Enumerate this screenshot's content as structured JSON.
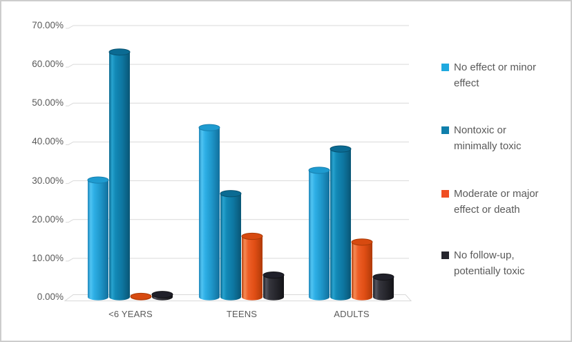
{
  "window": {
    "background": "#FFFFFF",
    "border_color": "#CDCDCD"
  },
  "chart_data": {
    "type": "bar",
    "style": "3d-cylinder",
    "title": "",
    "categories": [
      "<6 YEARS",
      "TEENS",
      "ADULTS"
    ],
    "category_ids": [
      "under-6-years",
      "teens",
      "adults"
    ],
    "yticks": [
      "0.00%",
      "10.00%",
      "20.00%",
      "30.00%",
      "40.00%",
      "50.00%",
      "60.00%",
      "70.00%"
    ],
    "ylim": [
      0,
      70
    ],
    "grid": true,
    "grid_color": "#D9D9D9",
    "axis_text_color": "#595959",
    "legend_position": "right",
    "series": [
      {
        "id": "no-effect-or-minor-effect",
        "name": "No effect or minor effect",
        "legend_label": "No effect or minor\neffect",
        "values": [
          31,
          44.5,
          33.5
        ],
        "swatch": "#1FA9DF",
        "top_fill": "#1E9BD0",
        "top_stroke": "#177FAE",
        "gradient": [
          [
            0,
            "#1D86B9"
          ],
          [
            0.14,
            "#4FC3F2"
          ],
          [
            0.3,
            "#2EAFE6"
          ],
          [
            0.62,
            "#1E96C9"
          ],
          [
            1,
            "#116F9C"
          ]
        ]
      },
      {
        "id": "nontoxic-or-minimally-toxic",
        "name": "Nontoxic or minimally toxic",
        "legend_label": "Nontoxic or\nminimally toxic",
        "values": [
          64,
          27.5,
          39
        ],
        "swatch": "#0F7FAB",
        "top_fill": "#0B6B93",
        "top_stroke": "#08516F",
        "gradient": [
          [
            0,
            "#0C688E"
          ],
          [
            0.14,
            "#27A3CF"
          ],
          [
            0.3,
            "#1289B6"
          ],
          [
            0.62,
            "#0E77A2"
          ],
          [
            1,
            "#095675"
          ]
        ]
      },
      {
        "id": "moderate-or-major-effect-or-death",
        "name": "Moderate or major effect or death",
        "legend_label": "Moderate or major\neffect or death",
        "values": [
          1,
          16.5,
          15
        ],
        "swatch": "#F04E22",
        "top_fill": "#D74A10",
        "top_stroke": "#A93B06",
        "gradient": [
          [
            0,
            "#BC410F"
          ],
          [
            0.14,
            "#F58B55"
          ],
          [
            0.3,
            "#EE5F28"
          ],
          [
            0.62,
            "#E04E15"
          ],
          [
            1,
            "#B03A08"
          ]
        ]
      },
      {
        "id": "no-follow-up-potentially-toxic",
        "name": "No follow-up, potentially toxic",
        "legend_label": "No follow-up,\npotentially toxic",
        "values": [
          1.5,
          6.5,
          6
        ],
        "swatch": "#26262E",
        "top_fill": "#20202A",
        "top_stroke": "#121216",
        "gradient": [
          [
            0,
            "#1A1A20"
          ],
          [
            0.14,
            "#55555F"
          ],
          [
            0.3,
            "#35353D"
          ],
          [
            0.62,
            "#26262C"
          ],
          [
            1,
            "#131317"
          ]
        ]
      }
    ]
  }
}
